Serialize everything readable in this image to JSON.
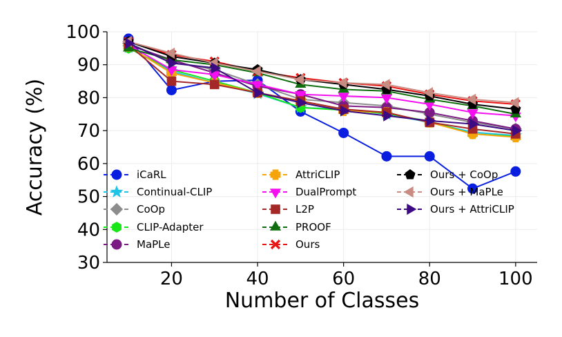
{
  "chart_data": {
    "type": "line",
    "title": "",
    "xlabel": "Number of Classes",
    "ylabel": "Accuracy (%)",
    "x": [
      10,
      20,
      30,
      40,
      50,
      60,
      70,
      80,
      90,
      100
    ],
    "xticks": [
      20,
      40,
      60,
      80,
      100
    ],
    "yticks": [
      30,
      40,
      50,
      60,
      70,
      80,
      90,
      100
    ],
    "xlim": [
      5,
      105
    ],
    "ylim": [
      30,
      100
    ],
    "grid": true,
    "legend_position": "lower-left",
    "series": [
      {
        "name": "iCaRL",
        "color": "#0a1ee0",
        "marker": "circle",
        "values": [
          97.9,
          82.3,
          85.0,
          85.3,
          75.8,
          69.3,
          62.2,
          62.2,
          52.4,
          57.6
        ]
      },
      {
        "name": "Continual-CLIP",
        "color": "#1ec3e6",
        "marker": "star",
        "values": [
          95.2,
          88.0,
          84.5,
          81.2,
          77.0,
          76.5,
          75.0,
          72.5,
          69.5,
          68.5
        ]
      },
      {
        "name": "CoOp",
        "color": "#8c8c8c",
        "marker": "diamond",
        "values": [
          96.5,
          91.0,
          88.5,
          84.0,
          79.5,
          78.5,
          77.5,
          75.0,
          72.5,
          70.5
        ]
      },
      {
        "name": "CLIP-Adapter",
        "color": "#19e619",
        "marker": "hexagon",
        "values": [
          95.0,
          88.5,
          85.0,
          81.5,
          77.0,
          76.2,
          75.2,
          72.8,
          69.0,
          68.2
        ]
      },
      {
        "name": "MaPLe",
        "color": "#7a1a82",
        "marker": "circle",
        "values": [
          96.0,
          91.5,
          87.5,
          83.5,
          81.0,
          77.5,
          77.0,
          75.5,
          73.0,
          70.5
        ]
      },
      {
        "name": "AttriCLIP",
        "color": "#f5a50a",
        "marker": "plus",
        "values": [
          95.5,
          87.5,
          84.5,
          81.5,
          79.0,
          76.0,
          75.5,
          72.5,
          69.0,
          68.0
        ]
      },
      {
        "name": "DualPrompt",
        "color": "#f50ff0",
        "marker": "triangle-down",
        "values": [
          96.0,
          88.5,
          87.0,
          84.0,
          81.0,
          80.5,
          80.0,
          78.0,
          75.5,
          74.5
        ]
      },
      {
        "name": "L2P",
        "color": "#a52828",
        "marker": "square",
        "values": [
          96.0,
          85.0,
          84.0,
          81.5,
          79.0,
          76.5,
          75.5,
          72.5,
          70.5,
          69.0
        ]
      },
      {
        "name": "PROOF",
        "color": "#0e6e0e",
        "marker": "triangle-up",
        "values": [
          95.0,
          91.5,
          90.0,
          87.5,
          84.0,
          82.5,
          82.0,
          79.5,
          77.5,
          75.0
        ]
      },
      {
        "name": "Ours",
        "color": "#eb1414",
        "marker": "x",
        "values": [
          97.0,
          93.0,
          91.0,
          88.0,
          86.0,
          84.5,
          83.5,
          81.0,
          79.0,
          78.0
        ]
      },
      {
        "name": "Ours + CoOp",
        "color": "#000000",
        "marker": "pentagon",
        "values": [
          97.0,
          92.5,
          90.5,
          88.5,
          85.5,
          84.0,
          82.5,
          80.5,
          78.0,
          76.5
        ]
      },
      {
        "name": "Ours + MaPLe",
        "color": "#c88c82",
        "marker": "triangle-left",
        "values": [
          97.0,
          93.5,
          90.5,
          88.0,
          85.5,
          84.5,
          84.0,
          81.5,
          79.5,
          78.5
        ]
      },
      {
        "name": "Ours + AttriCLIP",
        "color": "#3c0a82",
        "marker": "triangle-right",
        "values": [
          96.5,
          90.5,
          89.0,
          81.5,
          78.5,
          76.0,
          74.5,
          73.0,
          72.0,
          70.0
        ]
      }
    ]
  }
}
